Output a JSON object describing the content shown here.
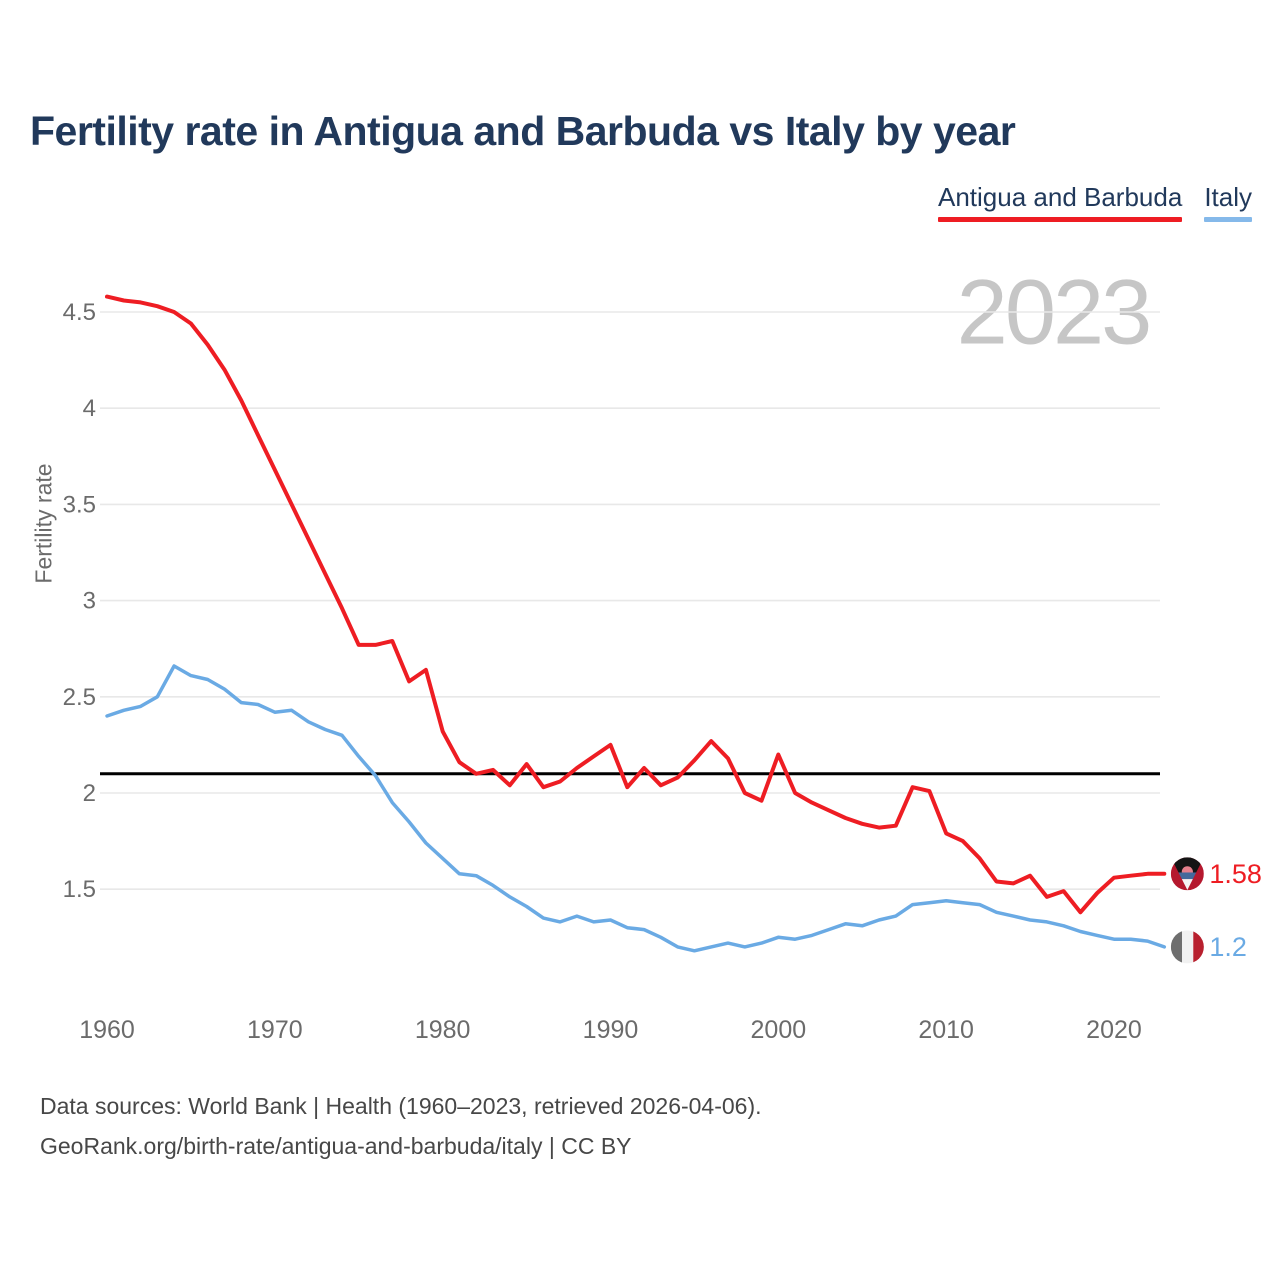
{
  "header": {
    "title": "Fertility rate in Antigua and Barbuda vs Italy by year"
  },
  "legend": {
    "items": [
      {
        "label": "Antigua and Barbuda",
        "color": "#ee1d23"
      },
      {
        "label": "Italy",
        "color": "#85b9ea"
      }
    ]
  },
  "footer": {
    "line1": "Data sources: World Bank | Health (1960–2023, retrieved 2026-04-06).",
    "line2": "GeoRank.org/birth-rate/antigua-and-barbuda/italy | CC BY"
  },
  "chart_data": {
    "type": "line",
    "title": "Fertility rate in Antigua and Barbuda vs Italy by year",
    "xlabel": "",
    "ylabel": "Fertility rate",
    "watermark": "2023",
    "x_range": {
      "start": 1960,
      "end": 2023,
      "step": 1
    },
    "x_ticks": [
      1960,
      1970,
      1980,
      1990,
      2000,
      2010,
      2020
    ],
    "y_ticks": [
      4.5,
      4,
      3.5,
      3,
      2.5,
      2,
      1.5
    ],
    "ylim": [
      1.05,
      4.75
    ],
    "grid": "horizontal",
    "legend_position": "top-right",
    "reference_line": {
      "value": 2.1,
      "color": "#000000"
    },
    "series": [
      {
        "name": "Antigua and Barbuda",
        "color": "#ee1d23",
        "end_label": "1.58",
        "flag": "antigua-and-barbuda",
        "values": [
          4.58,
          4.56,
          4.55,
          4.53,
          4.5,
          4.44,
          4.33,
          4.2,
          4.04,
          3.86,
          3.68,
          3.5,
          3.32,
          3.14,
          2.96,
          2.77,
          2.77,
          2.79,
          2.58,
          2.64,
          2.32,
          2.16,
          2.1,
          2.12,
          2.04,
          2.15,
          2.03,
          2.06,
          2.13,
          2.19,
          2.25,
          2.03,
          2.13,
          2.04,
          2.08,
          2.17,
          2.27,
          2.18,
          2.0,
          1.96,
          2.2,
          2.0,
          1.95,
          1.91,
          1.87,
          1.84,
          1.82,
          1.83,
          2.03,
          2.01,
          1.79,
          1.75,
          1.66,
          1.54,
          1.53,
          1.57,
          1.46,
          1.49,
          1.38,
          1.48,
          1.56,
          1.57,
          1.58,
          1.58
        ]
      },
      {
        "name": "Italy",
        "color": "#6aaae4",
        "end_label": "1.2",
        "flag": "italy",
        "values": [
          2.4,
          2.43,
          2.45,
          2.5,
          2.66,
          2.61,
          2.59,
          2.54,
          2.47,
          2.46,
          2.42,
          2.43,
          2.37,
          2.33,
          2.3,
          2.19,
          2.09,
          1.95,
          1.85,
          1.74,
          1.66,
          1.58,
          1.57,
          1.52,
          1.46,
          1.41,
          1.35,
          1.33,
          1.36,
          1.33,
          1.34,
          1.3,
          1.29,
          1.25,
          1.2,
          1.18,
          1.2,
          1.22,
          1.2,
          1.22,
          1.25,
          1.24,
          1.26,
          1.29,
          1.32,
          1.31,
          1.34,
          1.36,
          1.42,
          1.43,
          1.44,
          1.43,
          1.42,
          1.38,
          1.36,
          1.34,
          1.33,
          1.31,
          1.28,
          1.26,
          1.24,
          1.24,
          1.23,
          1.2
        ]
      }
    ]
  },
  "colors": {
    "title": "#21395b",
    "axis_text": "#6b6b6b",
    "gridline": "#e8e8e8",
    "watermark": "#c6c6c6",
    "footer_text": "#474747",
    "reference_line": "#000000"
  }
}
